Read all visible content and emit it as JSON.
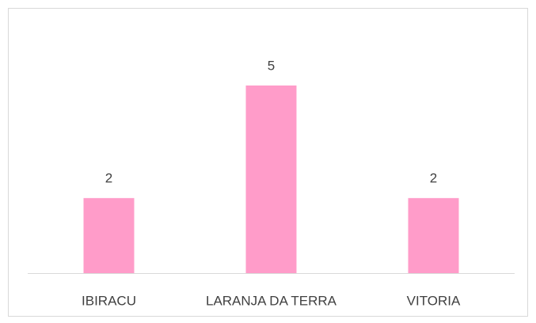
{
  "chart_data": {
    "type": "bar",
    "categories": [
      "IBIRACU",
      "LARANJA DA TERRA",
      "VITORIA"
    ],
    "values": [
      2,
      5,
      2
    ],
    "color": "#ff9cc9"
  }
}
